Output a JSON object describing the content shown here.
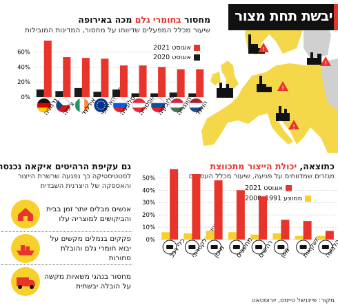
{
  "headline": "יבשת תחת מצור",
  "panel1": {
    "title_prefix": "מחסור ",
    "title_highlight": "בחומרי גלם",
    "title_suffix": " מכה באירופה",
    "subtitle": "שיעור מכלל המפעלים שדיווחו על מחסור, המדינות המובילות",
    "legend": [
      "אוגוסט 2021",
      "אוגוסט 2020"
    ]
  },
  "panel2": {
    "title_prefix": "כתוצאה, ",
    "title_highlight": "יכולת הייצור מתכווצת",
    "subtitle_1": "מגזרים שמדווחים על פגיעה, שיעור מכלל העסקים",
    "subtitle_2": "",
    "legend": [
      "אוגוסט 2021",
      "ממוצע 1991–2000"
    ]
  },
  "panel3": {
    "title": "גם עקיפת הרהיטים איקאה נכנסה",
    "subtitle_1": "לסטטיסטיקה כך נפגעה שרשרת הייצור",
    "subtitle_2": "והאספקה של היצרנית השבדית",
    "items": [
      "אנשים מבלים יותר זמן בבית והביקושים למוצריה עלו",
      "פקקים בנמלים מקשים על יבוא חומרי גלם והובלת סחורות",
      "מחסור בנהגי משאיות מקשה על הובלה יבשתית"
    ]
  },
  "source": "מקור: פייננשל טיימס, יורוסטאט",
  "colors": {
    "red": "#e8342b",
    "black": "#1a1a1a",
    "yellow": "#f7d02c",
    "map_yellow": "#f5d84a",
    "map_gray": "#d0d0d0"
  },
  "chart_data": [
    {
      "type": "bar",
      "title": "מחסור בחומרי גלם מכה באירופה",
      "categories": [
        "גרמניה",
        "צ'כיה",
        "אירלנד",
        "האיחוד האירופי",
        "סלובניה",
        "אוסטריה",
        "סלובקיה",
        "הונגריה",
        "הולנד"
      ],
      "ylim": [
        0,
        75
      ],
      "yticks": [
        "0%",
        "20%",
        "40%",
        "60%"
      ],
      "series": [
        {
          "name": "אוגוסט 2021",
          "values": [
            75,
            53,
            52,
            51,
            42,
            42,
            40,
            37,
            37
          ]
        },
        {
          "name": "אוגוסט 2020",
          "values": [
            10,
            8,
            12,
            7,
            10,
            5,
            5,
            6,
            5
          ]
        }
      ],
      "flags": [
        "de",
        "cz",
        "ie",
        "eu",
        "si",
        "at",
        "sk",
        "hu",
        "nl"
      ]
    },
    {
      "type": "bar",
      "title": "כתוצאה, יכולת הייצור מתכווצת",
      "categories": [
        "כלי רכב",
        "ציוד אלקטרוני",
        "מיכון",
        "מחשבים",
        "רהיטים",
        "מזון",
        "משקאות",
        "הלבשה"
      ],
      "ylim": [
        0,
        58
      ],
      "yticks": [
        "0%",
        "10%",
        "20%",
        "30%",
        "40%",
        "50%"
      ],
      "series": [
        {
          "name": "אוגוסט 2021",
          "values": [
            57,
            53,
            48,
            40,
            35,
            16,
            15,
            7
          ]
        },
        {
          "name": "ממוצע 1991–2000",
          "values": [
            6,
            5,
            7,
            6,
            4,
            5,
            3,
            3
          ]
        }
      ]
    }
  ]
}
